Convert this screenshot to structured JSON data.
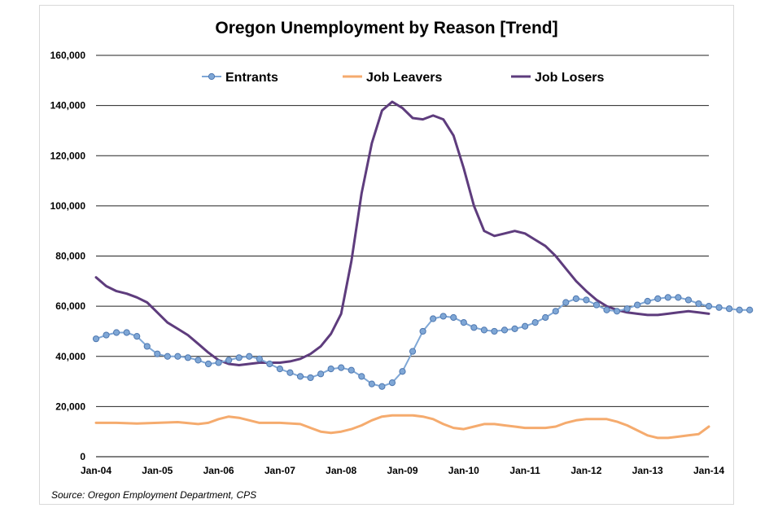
{
  "chart_data": {
    "type": "line",
    "title": "Oregon Unemployment by Reason [Trend]",
    "xlabel": "",
    "ylabel": "",
    "source": "Source: Oregon Employment Department, CPS",
    "x_ticks": [
      "Jan-04",
      "Jan-05",
      "Jan-06",
      "Jan-07",
      "Jan-08",
      "Jan-09",
      "Jan-10",
      "Jan-11",
      "Jan-12",
      "Jan-13",
      "Jan-14"
    ],
    "y_ticks": [
      "0",
      "20,000",
      "40,000",
      "60,000",
      "80,000",
      "100,000",
      "120,000",
      "140,000",
      "160,000"
    ],
    "ylim": [
      0,
      160000
    ],
    "xlim_months": [
      0,
      120
    ],
    "grid": true,
    "legend_position": "top",
    "series": [
      {
        "name": "Entrants",
        "color": "#7fa7d6",
        "edge_color": "#4f78b0",
        "marker": "circle",
        "points": [
          [
            0,
            47000
          ],
          [
            2,
            48500
          ],
          [
            4,
            49500
          ],
          [
            6,
            49500
          ],
          [
            8,
            48000
          ],
          [
            10,
            44000
          ],
          [
            12,
            41000
          ],
          [
            14,
            40000
          ],
          [
            16,
            40000
          ],
          [
            18,
            39500
          ],
          [
            20,
            38500
          ],
          [
            22,
            37000
          ],
          [
            24,
            37500
          ],
          [
            26,
            38500
          ],
          [
            28,
            39500
          ],
          [
            30,
            40000
          ],
          [
            32,
            39000
          ],
          [
            34,
            37000
          ],
          [
            36,
            35000
          ],
          [
            38,
            33500
          ],
          [
            40,
            32000
          ],
          [
            42,
            31500
          ],
          [
            44,
            33000
          ],
          [
            46,
            35000
          ],
          [
            48,
            35500
          ],
          [
            50,
            34500
          ],
          [
            52,
            32000
          ],
          [
            54,
            29000
          ],
          [
            56,
            28000
          ],
          [
            58,
            29500
          ],
          [
            60,
            34000
          ],
          [
            62,
            42000
          ],
          [
            64,
            50000
          ],
          [
            66,
            55000
          ],
          [
            68,
            56000
          ],
          [
            70,
            55500
          ],
          [
            72,
            53500
          ],
          [
            74,
            51500
          ],
          [
            76,
            50500
          ],
          [
            78,
            50000
          ],
          [
            80,
            50500
          ],
          [
            82,
            51000
          ],
          [
            84,
            52000
          ],
          [
            86,
            53500
          ],
          [
            88,
            55500
          ],
          [
            90,
            58000
          ],
          [
            92,
            61500
          ],
          [
            94,
            63000
          ],
          [
            96,
            62500
          ],
          [
            98,
            60500
          ],
          [
            100,
            58500
          ],
          [
            102,
            58000
          ],
          [
            104,
            59000
          ],
          [
            106,
            60500
          ],
          [
            108,
            62000
          ],
          [
            110,
            63000
          ],
          [
            112,
            63500
          ],
          [
            114,
            63500
          ],
          [
            116,
            62500
          ],
          [
            118,
            61000
          ],
          [
            120,
            60000
          ],
          [
            122,
            59500
          ],
          [
            124,
            59000
          ],
          [
            126,
            58500
          ],
          [
            128,
            58500
          ]
        ]
      },
      {
        "name": "Job Leavers",
        "color": "#f5ab6e",
        "marker": "none",
        "points": [
          [
            0,
            13500
          ],
          [
            4,
            13500
          ],
          [
            8,
            13200
          ],
          [
            12,
            13500
          ],
          [
            16,
            13800
          ],
          [
            20,
            13000
          ],
          [
            22,
            13500
          ],
          [
            24,
            15000
          ],
          [
            26,
            16000
          ],
          [
            28,
            15500
          ],
          [
            30,
            14500
          ],
          [
            32,
            13500
          ],
          [
            36,
            13500
          ],
          [
            40,
            13000
          ],
          [
            42,
            11500
          ],
          [
            44,
            10000
          ],
          [
            46,
            9500
          ],
          [
            48,
            10000
          ],
          [
            50,
            11000
          ],
          [
            52,
            12500
          ],
          [
            54,
            14500
          ],
          [
            56,
            16000
          ],
          [
            58,
            16500
          ],
          [
            62,
            16500
          ],
          [
            64,
            16000
          ],
          [
            66,
            15000
          ],
          [
            68,
            13000
          ],
          [
            70,
            11500
          ],
          [
            72,
            11000
          ],
          [
            74,
            12000
          ],
          [
            76,
            13000
          ],
          [
            78,
            13000
          ],
          [
            80,
            12500
          ],
          [
            82,
            12000
          ],
          [
            84,
            11500
          ],
          [
            88,
            11500
          ],
          [
            90,
            12000
          ],
          [
            92,
            13500
          ],
          [
            94,
            14500
          ],
          [
            96,
            15000
          ],
          [
            100,
            15000
          ],
          [
            102,
            14000
          ],
          [
            104,
            12500
          ],
          [
            106,
            10500
          ],
          [
            108,
            8500
          ],
          [
            110,
            7500
          ],
          [
            112,
            7500
          ],
          [
            114,
            8000
          ],
          [
            116,
            8500
          ],
          [
            118,
            9000
          ],
          [
            120,
            12000
          ]
        ]
      },
      {
        "name": "Job Losers",
        "color": "#5e3c7d",
        "marker": "none",
        "points": [
          [
            0,
            71500
          ],
          [
            2,
            68000
          ],
          [
            4,
            66000
          ],
          [
            6,
            65000
          ],
          [
            8,
            63500
          ],
          [
            10,
            61500
          ],
          [
            12,
            57500
          ],
          [
            14,
            53500
          ],
          [
            16,
            51000
          ],
          [
            18,
            48500
          ],
          [
            20,
            45000
          ],
          [
            22,
            41500
          ],
          [
            24,
            38500
          ],
          [
            26,
            37000
          ],
          [
            28,
            36500
          ],
          [
            30,
            37000
          ],
          [
            32,
            37500
          ],
          [
            34,
            37500
          ],
          [
            36,
            37500
          ],
          [
            38,
            38000
          ],
          [
            40,
            39000
          ],
          [
            42,
            41000
          ],
          [
            44,
            44000
          ],
          [
            46,
            49000
          ],
          [
            48,
            57000
          ],
          [
            50,
            78000
          ],
          [
            52,
            105000
          ],
          [
            54,
            125000
          ],
          [
            56,
            138000
          ],
          [
            58,
            141500
          ],
          [
            60,
            139000
          ],
          [
            62,
            135000
          ],
          [
            64,
            134500
          ],
          [
            66,
            136000
          ],
          [
            68,
            134500
          ],
          [
            70,
            128000
          ],
          [
            72,
            115000
          ],
          [
            74,
            100000
          ],
          [
            76,
            90000
          ],
          [
            78,
            88000
          ],
          [
            80,
            89000
          ],
          [
            82,
            90000
          ],
          [
            84,
            89000
          ],
          [
            86,
            86500
          ],
          [
            88,
            84000
          ],
          [
            90,
            80000
          ],
          [
            92,
            75000
          ],
          [
            94,
            70000
          ],
          [
            96,
            66000
          ],
          [
            98,
            62500
          ],
          [
            100,
            60000
          ],
          [
            102,
            58500
          ],
          [
            104,
            57500
          ],
          [
            106,
            57000
          ],
          [
            108,
            56500
          ],
          [
            110,
            56500
          ],
          [
            112,
            57000
          ],
          [
            114,
            57500
          ],
          [
            116,
            58000
          ],
          [
            118,
            57500
          ],
          [
            120,
            57000
          ]
        ]
      }
    ]
  }
}
